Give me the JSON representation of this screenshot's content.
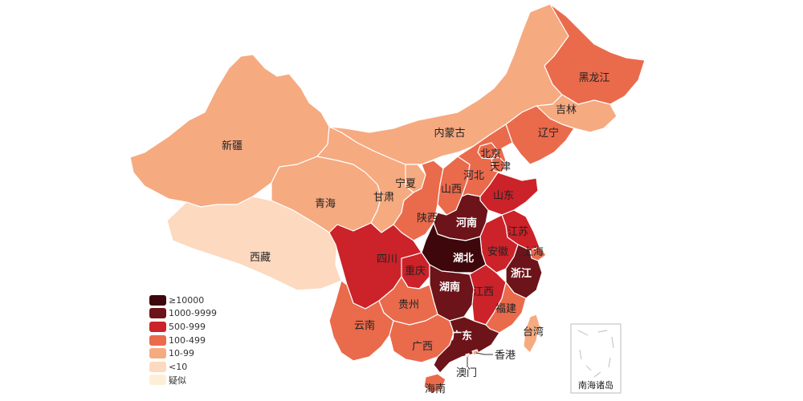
{
  "map": {
    "legend": [
      {
        "label": "≥10000",
        "color": "#3d070b"
      },
      {
        "label": "1000-9999",
        "color": "#6c1419"
      },
      {
        "label": "500-999",
        "color": "#cc2229"
      },
      {
        "label": "100-499",
        "color": "#ea6a4c"
      },
      {
        "label": "10-99",
        "color": "#f6aa80"
      },
      {
        "label": "<10",
        "color": "#fcd9bf"
      },
      {
        "label": "疑似",
        "color": "#fdefd6"
      }
    ],
    "provinces": [
      {
        "id": "xinjiang",
        "name": "新疆",
        "tier": "10-99"
      },
      {
        "id": "xizang",
        "name": "西藏",
        "tier": "<10"
      },
      {
        "id": "qinghai",
        "name": "青海",
        "tier": "10-99"
      },
      {
        "id": "gansu",
        "name": "甘肃",
        "tier": "10-99"
      },
      {
        "id": "neimenggu",
        "name": "内蒙古",
        "tier": "10-99"
      },
      {
        "id": "heilongjiang",
        "name": "黑龙江",
        "tier": "100-499"
      },
      {
        "id": "jilin",
        "name": "吉林",
        "tier": "10-99"
      },
      {
        "id": "liaoning",
        "name": "辽宁",
        "tier": "100-499"
      },
      {
        "id": "ningxia",
        "name": "宁夏",
        "tier": "10-99"
      },
      {
        "id": "shaanxi",
        "name": "陕西",
        "tier": "100-499"
      },
      {
        "id": "shanxi",
        "name": "山西",
        "tier": "100-499"
      },
      {
        "id": "hebei",
        "name": "河北",
        "tier": "100-499"
      },
      {
        "id": "beijing",
        "name": "北京",
        "tier": "100-499"
      },
      {
        "id": "tianjin",
        "name": "天津",
        "tier": "100-499"
      },
      {
        "id": "shandong",
        "name": "山东",
        "tier": "500-999"
      },
      {
        "id": "henan",
        "name": "河南",
        "tier": "1000-9999"
      },
      {
        "id": "jiangsu",
        "name": "江苏",
        "tier": "500-999"
      },
      {
        "id": "anhui",
        "name": "安徽",
        "tier": "500-999"
      },
      {
        "id": "shanghai",
        "name": "上海",
        "tier": "100-499"
      },
      {
        "id": "hubei",
        "name": "湖北",
        "tier": "≥10000"
      },
      {
        "id": "zhejiang",
        "name": "浙江",
        "tier": "1000-9999"
      },
      {
        "id": "sichuan",
        "name": "四川",
        "tier": "500-999"
      },
      {
        "id": "chongqing",
        "name": "重庆",
        "tier": "500-999"
      },
      {
        "id": "hunan",
        "name": "湖南",
        "tier": "1000-9999"
      },
      {
        "id": "jiangxi",
        "name": "江西",
        "tier": "500-999"
      },
      {
        "id": "guizhou",
        "name": "贵州",
        "tier": "100-499"
      },
      {
        "id": "yunnan",
        "name": "云南",
        "tier": "100-499"
      },
      {
        "id": "fujian",
        "name": "福建",
        "tier": "100-499"
      },
      {
        "id": "guangxi",
        "name": "广西",
        "tier": "100-499"
      },
      {
        "id": "guangdong",
        "name": "广东",
        "tier": "1000-9999"
      },
      {
        "id": "hainan",
        "name": "海南",
        "tier": "100-499"
      },
      {
        "id": "taiwan",
        "name": "台湾",
        "tier": "10-99"
      },
      {
        "id": "xianggang",
        "name": "香港",
        "tier": "10-99"
      },
      {
        "id": "aomen",
        "name": "澳门",
        "tier": "<10"
      }
    ],
    "inset_label": "南海诸岛"
  }
}
